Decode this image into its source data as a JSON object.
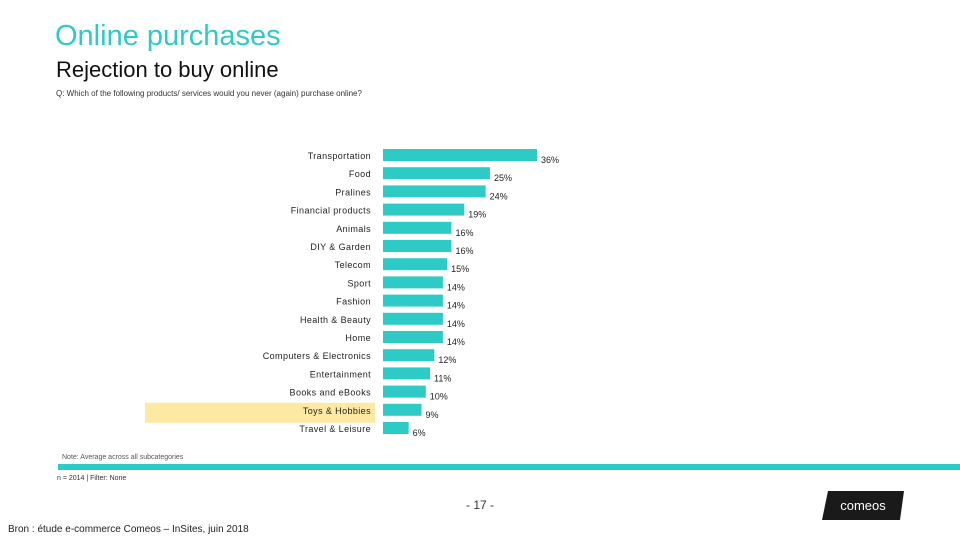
{
  "header": {
    "title": "Online purchases",
    "subtitle": "Rejection to buy online",
    "question": "Q: Which of the following products/ services would you never (again) purchase online?"
  },
  "chart_data": {
    "type": "bar",
    "orientation": "horizontal",
    "categories": [
      "Transportation",
      "Food",
      "Pralines",
      "Financial products",
      "Animals",
      "DIY & Garden",
      "Telecom",
      "Sport",
      "Fashion",
      "Health & Beauty",
      "Home",
      "Computers & Electronics",
      "Entertainment",
      "Books and eBooks",
      "Toys & Hobbies",
      "Travel & Leisure"
    ],
    "values": [
      36,
      25,
      24,
      19,
      16,
      16,
      15,
      14,
      14,
      14,
      14,
      12,
      11,
      10,
      9,
      6
    ],
    "value_labels": [
      "36%",
      "25%",
      "24%",
      "19%",
      "16%",
      "16%",
      "15%",
      "14%",
      "14%",
      "14%",
      "14%",
      "12%",
      "11%",
      "10%",
      "9%",
      "6%"
    ],
    "highlighted_category": "Toys & Hobbies",
    "bar_color": "#2ecbc6",
    "highlight_color": "#fde9a2",
    "xlim": [
      0,
      36
    ],
    "grid": false,
    "legend": "none"
  },
  "footer": {
    "note": "Note: Average across all subcategories",
    "sample": "n = 2014 | Filter: None",
    "page": "- 17 -",
    "logo_text": "comeos",
    "source": "Bron : étude e-commerce Comeos – InSites, juin 2018"
  },
  "colors": {
    "accent": "#2ecbc6",
    "logo_bg": "#1a1a1a"
  }
}
